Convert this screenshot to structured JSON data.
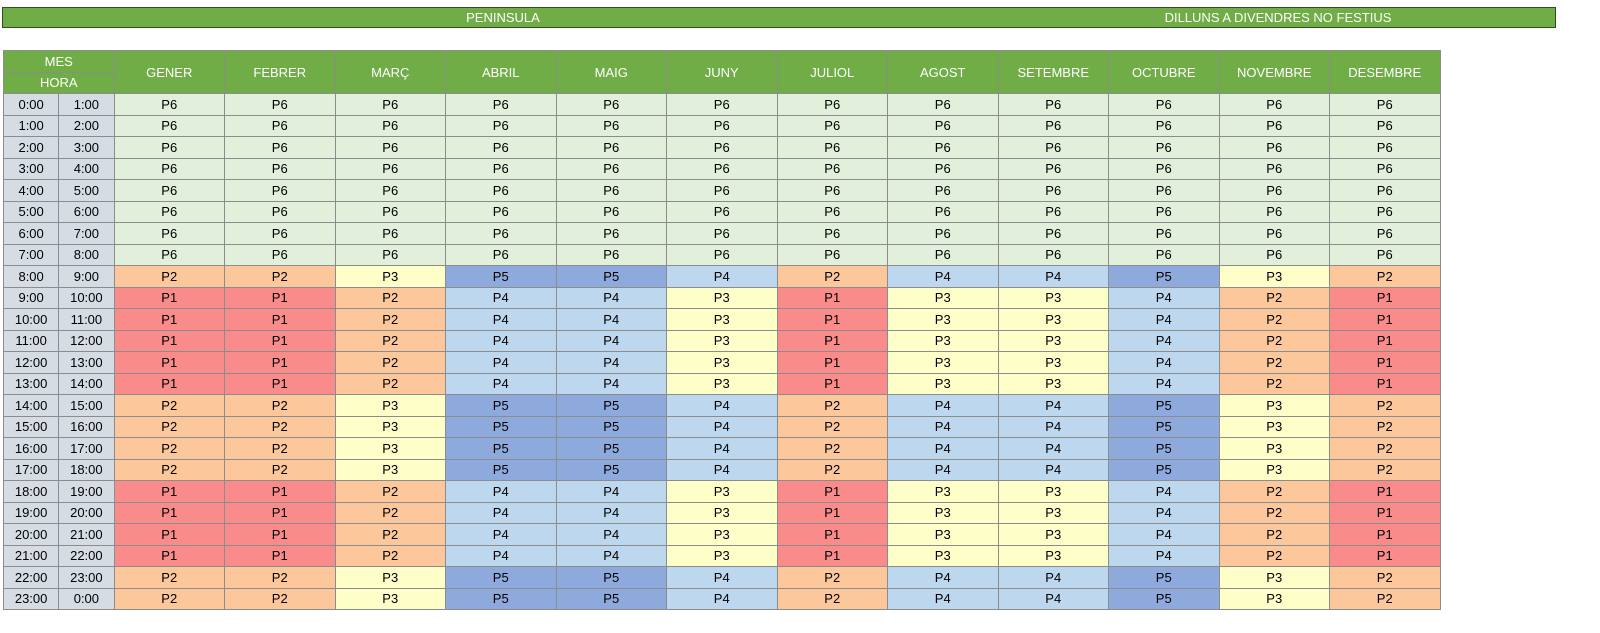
{
  "banner": {
    "region": "PENINSULA",
    "daytype": "DILLUNS A DIVENDRES NO FESTIUS"
  },
  "header": {
    "mes": "MES",
    "hora": "HORA",
    "months": [
      "GENER",
      "FEBRER",
      "MARÇ",
      "ABRIL",
      "MAIG",
      "JUNY",
      "JULIOL",
      "AGOST",
      "SETEMBRE",
      "OCTUBRE",
      "NOVEMBRE",
      "DESEMBRE"
    ]
  },
  "rows": [
    {
      "from": "0:00",
      "to": "1:00",
      "periods": [
        "P6",
        "P6",
        "P6",
        "P6",
        "P6",
        "P6",
        "P6",
        "P6",
        "P6",
        "P6",
        "P6",
        "P6"
      ]
    },
    {
      "from": "1:00",
      "to": "2:00",
      "periods": [
        "P6",
        "P6",
        "P6",
        "P6",
        "P6",
        "P6",
        "P6",
        "P6",
        "P6",
        "P6",
        "P6",
        "P6"
      ]
    },
    {
      "from": "2:00",
      "to": "3:00",
      "periods": [
        "P6",
        "P6",
        "P6",
        "P6",
        "P6",
        "P6",
        "P6",
        "P6",
        "P6",
        "P6",
        "P6",
        "P6"
      ]
    },
    {
      "from": "3:00",
      "to": "4:00",
      "periods": [
        "P6",
        "P6",
        "P6",
        "P6",
        "P6",
        "P6",
        "P6",
        "P6",
        "P6",
        "P6",
        "P6",
        "P6"
      ]
    },
    {
      "from": "4:00",
      "to": "5:00",
      "periods": [
        "P6",
        "P6",
        "P6",
        "P6",
        "P6",
        "P6",
        "P6",
        "P6",
        "P6",
        "P6",
        "P6",
        "P6"
      ]
    },
    {
      "from": "5:00",
      "to": "6:00",
      "periods": [
        "P6",
        "P6",
        "P6",
        "P6",
        "P6",
        "P6",
        "P6",
        "P6",
        "P6",
        "P6",
        "P6",
        "P6"
      ]
    },
    {
      "from": "6:00",
      "to": "7:00",
      "periods": [
        "P6",
        "P6",
        "P6",
        "P6",
        "P6",
        "P6",
        "P6",
        "P6",
        "P6",
        "P6",
        "P6",
        "P6"
      ]
    },
    {
      "from": "7:00",
      "to": "8:00",
      "periods": [
        "P6",
        "P6",
        "P6",
        "P6",
        "P6",
        "P6",
        "P6",
        "P6",
        "P6",
        "P6",
        "P6",
        "P6"
      ]
    },
    {
      "from": "8:00",
      "to": "9:00",
      "periods": [
        "P2",
        "P2",
        "P3",
        "P5",
        "P5",
        "P4",
        "P2",
        "P4",
        "P4",
        "P5",
        "P3",
        "P2"
      ]
    },
    {
      "from": "9:00",
      "to": "10:00",
      "periods": [
        "P1",
        "P1",
        "P2",
        "P4",
        "P4",
        "P3",
        "P1",
        "P3",
        "P3",
        "P4",
        "P2",
        "P1"
      ]
    },
    {
      "from": "10:00",
      "to": "11:00",
      "periods": [
        "P1",
        "P1",
        "P2",
        "P4",
        "P4",
        "P3",
        "P1",
        "P3",
        "P3",
        "P4",
        "P2",
        "P1"
      ]
    },
    {
      "from": "11:00",
      "to": "12:00",
      "periods": [
        "P1",
        "P1",
        "P2",
        "P4",
        "P4",
        "P3",
        "P1",
        "P3",
        "P3",
        "P4",
        "P2",
        "P1"
      ]
    },
    {
      "from": "12:00",
      "to": "13:00",
      "periods": [
        "P1",
        "P1",
        "P2",
        "P4",
        "P4",
        "P3",
        "P1",
        "P3",
        "P3",
        "P4",
        "P2",
        "P1"
      ]
    },
    {
      "from": "13:00",
      "to": "14:00",
      "periods": [
        "P1",
        "P1",
        "P2",
        "P4",
        "P4",
        "P3",
        "P1",
        "P3",
        "P3",
        "P4",
        "P2",
        "P1"
      ]
    },
    {
      "from": "14:00",
      "to": "15:00",
      "periods": [
        "P2",
        "P2",
        "P3",
        "P5",
        "P5",
        "P4",
        "P2",
        "P4",
        "P4",
        "P5",
        "P3",
        "P2"
      ]
    },
    {
      "from": "15:00",
      "to": "16:00",
      "periods": [
        "P2",
        "P2",
        "P3",
        "P5",
        "P5",
        "P4",
        "P2",
        "P4",
        "P4",
        "P5",
        "P3",
        "P2"
      ]
    },
    {
      "from": "16:00",
      "to": "17:00",
      "periods": [
        "P2",
        "P2",
        "P3",
        "P5",
        "P5",
        "P4",
        "P2",
        "P4",
        "P4",
        "P5",
        "P3",
        "P2"
      ]
    },
    {
      "from": "17:00",
      "to": "18:00",
      "periods": [
        "P2",
        "P2",
        "P3",
        "P5",
        "P5",
        "P4",
        "P2",
        "P4",
        "P4",
        "P5",
        "P3",
        "P2"
      ]
    },
    {
      "from": "18:00",
      "to": "19:00",
      "periods": [
        "P1",
        "P1",
        "P2",
        "P4",
        "P4",
        "P3",
        "P1",
        "P3",
        "P3",
        "P4",
        "P2",
        "P1"
      ]
    },
    {
      "from": "19:00",
      "to": "20:00",
      "periods": [
        "P1",
        "P1",
        "P2",
        "P4",
        "P4",
        "P3",
        "P1",
        "P3",
        "P3",
        "P4",
        "P2",
        "P1"
      ]
    },
    {
      "from": "20:00",
      "to": "21:00",
      "periods": [
        "P1",
        "P1",
        "P2",
        "P4",
        "P4",
        "P3",
        "P1",
        "P3",
        "P3",
        "P4",
        "P2",
        "P1"
      ]
    },
    {
      "from": "21:00",
      "to": "22:00",
      "periods": [
        "P1",
        "P1",
        "P2",
        "P4",
        "P4",
        "P3",
        "P1",
        "P3",
        "P3",
        "P4",
        "P2",
        "P1"
      ]
    },
    {
      "from": "22:00",
      "to": "23:00",
      "periods": [
        "P2",
        "P2",
        "P3",
        "P5",
        "P5",
        "P4",
        "P2",
        "P4",
        "P4",
        "P5",
        "P3",
        "P2"
      ]
    },
    {
      "from": "23:00",
      "to": "0:00",
      "periods": [
        "P2",
        "P2",
        "P3",
        "P5",
        "P5",
        "P4",
        "P2",
        "P4",
        "P4",
        "P5",
        "P3",
        "P2"
      ]
    }
  ],
  "colors": {
    "header_green": "#70ad47",
    "hour_gray": "#d6dce4",
    "P1": "#f98b8b",
    "P2": "#fdc79c",
    "P3": "#feffc8",
    "P4": "#bdd7ee",
    "P5": "#8ea9db",
    "P6": "#e2efda"
  }
}
